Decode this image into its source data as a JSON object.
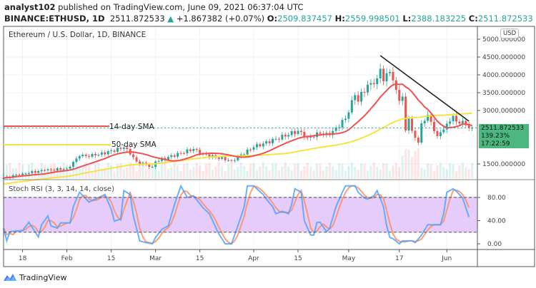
{
  "header": {
    "author": "analyst102",
    "published": "published on TradingView.com, June 09, 2021 06:37:04 UTC",
    "symbol": "BINANCE:ETHUSD, 1D",
    "last": "2511.872533",
    "change": "+1.867382 (+0.07%)",
    "open_label": "O:",
    "open": "2509.837457",
    "high_label": "H:",
    "high": "2559.998501",
    "low_label": "L:",
    "low": "2388.183225",
    "close_label": "C:",
    "close": "2511.872533"
  },
  "price_label": {
    "price": "2511.872533",
    "pct": "139.23%",
    "countdown": "17:22:59"
  },
  "currency": "USD",
  "branding": "TradingView",
  "colors": {
    "up": "#26a69a",
    "down": "#ef5350",
    "sma14": "#f05050",
    "sma50": "#f5e342",
    "stoch_k": "#4da3ff",
    "stoch_d": "#ff8c5a",
    "rsi_band": "#e3c8fb",
    "price_box": "#4cb880",
    "trendline": "#222222"
  },
  "chart_data": [
    {
      "type": "candlestick",
      "title": "Ethereum / U.S. Dollar, 1D, BINANCE",
      "date_range": [
        "2021-01-12",
        "2021-06-09"
      ],
      "y_ticks": [
        "5000.000000",
        "4500.000000",
        "4000.000000",
        "3500.000000",
        "3000.000000",
        "1500.000000"
      ],
      "y_tick_values": [
        5000,
        4500,
        4000,
        3500,
        3000,
        1500
      ],
      "x_ticks": [
        {
          "date": "2021-01-18",
          "label": "18"
        },
        {
          "date": "2021-02-01",
          "label": "Feb"
        },
        {
          "date": "2021-02-15",
          "label": "15"
        },
        {
          "date": "2021-03-01",
          "label": "Mar"
        },
        {
          "date": "2021-03-15",
          "label": "15"
        },
        {
          "date": "2021-04-01",
          "label": "Apr"
        },
        {
          "date": "2021-04-15",
          "label": "15"
        },
        {
          "date": "2021-05-01",
          "label": "May"
        },
        {
          "date": "2021-05-17",
          "label": "17"
        },
        {
          "date": "2021-06-01",
          "label": "Jun"
        }
      ],
      "close_approx": [
        [
          "2021-01-12",
          1100
        ],
        [
          "2021-01-18",
          1230
        ],
        [
          "2021-01-25",
          1320
        ],
        [
          "2021-02-01",
          1370
        ],
        [
          "2021-02-05",
          1720
        ],
        [
          "2021-02-10",
          1740
        ],
        [
          "2021-02-19",
          1960
        ],
        [
          "2021-02-20",
          1920
        ],
        [
          "2021-02-23",
          1570
        ],
        [
          "2021-02-28",
          1420
        ],
        [
          "2021-03-01",
          1570
        ],
        [
          "2021-03-13",
          1920
        ],
        [
          "2021-03-15",
          1790
        ],
        [
          "2021-03-25",
          1590
        ],
        [
          "2021-04-01",
          1970
        ],
        [
          "2021-04-15",
          2430
        ],
        [
          "2021-04-18",
          2240
        ],
        [
          "2021-04-22",
          2350
        ],
        [
          "2021-04-25",
          2310
        ],
        [
          "2021-04-30",
          2770
        ],
        [
          "2021-05-03",
          3430
        ],
        [
          "2021-05-04",
          3250
        ],
        [
          "2021-05-05",
          3520
        ],
        [
          "2021-05-10",
          3900
        ],
        [
          "2021-05-11",
          4170
        ],
        [
          "2021-05-12",
          3820
        ],
        [
          "2021-05-14",
          4080
        ],
        [
          "2021-05-16",
          3580
        ],
        [
          "2021-05-17",
          3270
        ],
        [
          "2021-05-18",
          3390
        ],
        [
          "2021-05-19",
          2440
        ],
        [
          "2021-05-20",
          2770
        ],
        [
          "2021-05-21",
          2430
        ],
        [
          "2021-05-23",
          2100
        ],
        [
          "2021-05-24",
          2640
        ],
        [
          "2021-05-25",
          2710
        ],
        [
          "2021-05-26",
          2880
        ],
        [
          "2021-05-28",
          2420
        ],
        [
          "2021-05-29",
          2280
        ],
        [
          "2021-05-30",
          2390
        ],
        [
          "2021-06-01",
          2630
        ],
        [
          "2021-06-03",
          2850
        ],
        [
          "2021-06-04",
          2690
        ],
        [
          "2021-06-06",
          2710
        ],
        [
          "2021-06-07",
          2590
        ],
        [
          "2021-06-08",
          2510
        ],
        [
          "2021-06-09",
          2511.87
        ]
      ],
      "last_price": 2511.872533,
      "trendline": [
        [
          "2021-05-11",
          4540
        ],
        [
          "2021-06-08",
          2700
        ]
      ],
      "annotations": [
        "14-day SMA",
        "50-day SMA"
      ]
    },
    {
      "type": "line",
      "title": "Stoch RSI (3, 3, 14, 14, close)",
      "y_ticks": [
        "80.00",
        "40.00",
        "0.00"
      ],
      "y_tick_values": [
        80,
        40,
        0
      ],
      "band": [
        20,
        80
      ],
      "k": [
        [
          "01-12",
          27
        ],
        [
          "01-13",
          5
        ],
        [
          "01-14",
          21
        ],
        [
          "01-18",
          23
        ],
        [
          "01-20",
          37
        ],
        [
          "01-23",
          12
        ],
        [
          "01-24",
          33
        ],
        [
          "01-26",
          48
        ],
        [
          "01-27",
          31
        ],
        [
          "01-29",
          27
        ],
        [
          "01-30",
          36
        ],
        [
          "02-02",
          36
        ],
        [
          "02-03",
          64
        ],
        [
          "02-05",
          89
        ],
        [
          "02-08",
          72
        ],
        [
          "02-11",
          80
        ],
        [
          "02-13",
          85
        ],
        [
          "02-15",
          60
        ],
        [
          "02-16",
          39
        ],
        [
          "02-18",
          43
        ],
        [
          "02-19",
          92
        ],
        [
          "02-21",
          85
        ],
        [
          "02-22",
          48
        ],
        [
          "02-24",
          5
        ],
        [
          "02-26",
          2
        ],
        [
          "02-28",
          0
        ],
        [
          "03-01",
          11
        ],
        [
          "03-03",
          25
        ],
        [
          "03-05",
          31
        ],
        [
          "03-07",
          68
        ],
        [
          "03-09",
          100
        ],
        [
          "03-11",
          80
        ],
        [
          "03-13",
          83
        ],
        [
          "03-16",
          62
        ],
        [
          "03-18",
          52
        ],
        [
          "03-21",
          17
        ],
        [
          "03-23",
          0
        ],
        [
          "03-25",
          0
        ],
        [
          "03-27",
          31
        ],
        [
          "03-29",
          64
        ],
        [
          "03-30",
          100
        ],
        [
          "04-01",
          100
        ],
        [
          "04-04",
          85
        ],
        [
          "04-05",
          77
        ],
        [
          "04-07",
          64
        ],
        [
          "04-08",
          52
        ],
        [
          "04-10",
          56
        ],
        [
          "04-12",
          52
        ],
        [
          "04-13",
          68
        ],
        [
          "04-14",
          95
        ],
        [
          "04-16",
          89
        ],
        [
          "04-17",
          40
        ],
        [
          "04-19",
          15
        ],
        [
          "04-20",
          15
        ],
        [
          "04-21",
          37
        ],
        [
          "04-22",
          37
        ],
        [
          "04-24",
          21
        ],
        [
          "04-25",
          27
        ],
        [
          "04-27",
          64
        ],
        [
          "04-29",
          89
        ],
        [
          "04-30",
          100
        ],
        [
          "05-03",
          100
        ],
        [
          "05-04",
          89
        ],
        [
          "05-06",
          79
        ],
        [
          "05-07",
          77
        ],
        [
          "05-09",
          83
        ],
        [
          "05-10",
          92
        ],
        [
          "05-12",
          64
        ],
        [
          "05-13",
          31
        ],
        [
          "05-14",
          11
        ],
        [
          "05-15",
          9
        ],
        [
          "05-17",
          0
        ],
        [
          "05-18",
          5
        ],
        [
          "05-21",
          5
        ],
        [
          "05-22",
          2
        ],
        [
          "05-24",
          15
        ],
        [
          "05-26",
          33
        ],
        [
          "05-28",
          33
        ],
        [
          "05-30",
          33
        ],
        [
          "05-31",
          52
        ],
        [
          "06-01",
          89
        ],
        [
          "06-03",
          95
        ],
        [
          "06-04",
          91
        ],
        [
          "06-06",
          79
        ],
        [
          "06-08",
          46
        ]
      ]
    }
  ]
}
